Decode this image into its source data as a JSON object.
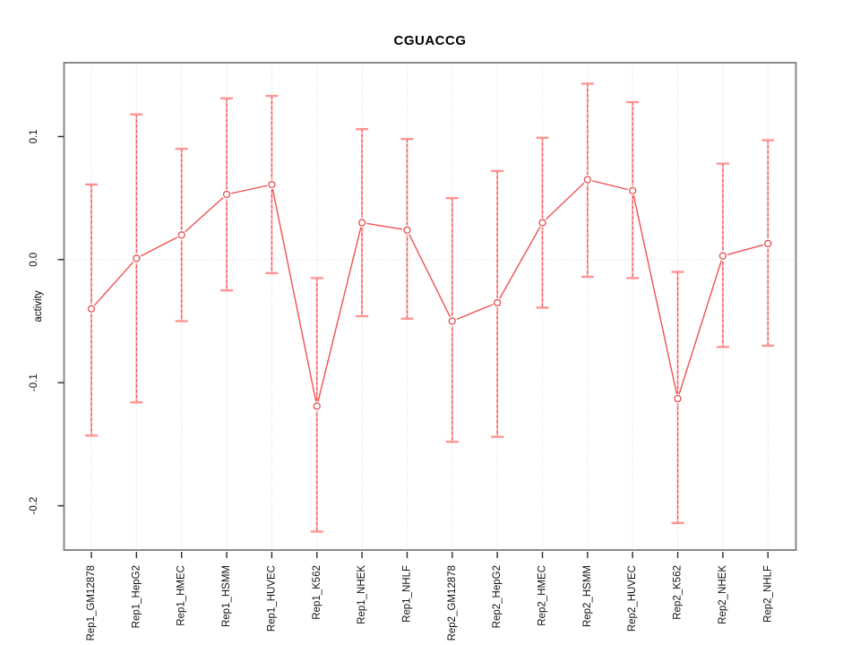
{
  "title": "CGUACCG",
  "y_axis_title": "activity",
  "chart_data": {
    "type": "line",
    "title": "CGUACCG",
    "xlabel": "",
    "ylabel": "activity",
    "legend_position": "none",
    "grid": {
      "vertical_gridlines": "dashed light gray at every category",
      "horizontal_line_at_zero": true
    },
    "ylim": [
      -0.236,
      0.16
    ],
    "yticks": [
      0.1,
      0.0,
      -0.1,
      -0.2
    ],
    "ytick_labels": [
      "0.1",
      "0.0",
      "-0.1",
      "-0.2"
    ],
    "categories": [
      "Rep1_GM12878",
      "Rep1_HepG2",
      "Rep1_HMEC",
      "Rep1_HSMM",
      "Rep1_HUVEC",
      "Rep1_K562",
      "Rep1_NHEK",
      "Rep1_NHLF",
      "Rep2_GM12878",
      "Rep2_HepG2",
      "Rep2_HMEC",
      "Rep2_HSMM",
      "Rep2_HUVEC",
      "Rep2_K562",
      "Rep2_NHEK",
      "Rep2_NHLF"
    ],
    "series": [
      {
        "name": "activity",
        "marker": "open-circle",
        "values": [
          -0.04,
          0.001,
          0.02,
          0.053,
          0.061,
          -0.119,
          0.03,
          0.024,
          -0.05,
          -0.035,
          0.03,
          0.065,
          0.056,
          -0.113,
          0.003,
          0.013
        ],
        "error_high": [
          0.061,
          0.118,
          0.09,
          0.131,
          0.133,
          -0.015,
          0.106,
          0.098,
          0.05,
          0.072,
          0.099,
          0.143,
          0.128,
          -0.01,
          0.078,
          0.097
        ],
        "error_low": [
          -0.143,
          -0.116,
          -0.05,
          -0.025,
          -0.011,
          -0.221,
          -0.046,
          -0.048,
          -0.148,
          -0.144,
          -0.039,
          -0.014,
          -0.015,
          -0.214,
          -0.071,
          -0.07
        ]
      }
    ],
    "colors": {
      "line": "#ef5151",
      "point_stroke": "#e34c4c",
      "errorbar_solid": "#ffa6a6",
      "errorbar_dash": "#e04f4f",
      "errorbar_cap": "#ff9494",
      "gridline": "#e2e2e2",
      "zero_line": "#d9d9d9",
      "plot_border": "#8a8a8a",
      "tick": "#2b2b2b",
      "text": "#111111"
    }
  }
}
